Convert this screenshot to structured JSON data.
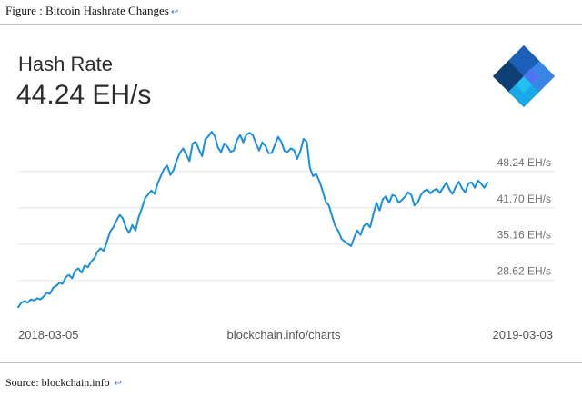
{
  "caption": {
    "text": "Figure : Bitcoin Hashrate Changes",
    "return_mark": "↩"
  },
  "source": {
    "text": "Source: blockchain.info",
    "return_mark": "↩"
  },
  "chart_data": {
    "type": "line",
    "title": "Hash Rate",
    "current_value": "44.24 EH/s",
    "x_start": "2018-03-05",
    "x_center_label": "blockchain.info/charts",
    "x_end": "2019-03-03",
    "y_ticks": [
      {
        "value": 48.24,
        "label": "48.24 EH/s"
      },
      {
        "value": 41.7,
        "label": "41.70 EH/s"
      },
      {
        "value": 35.16,
        "label": "35.16 EH/s"
      },
      {
        "value": 28.62,
        "label": "28.62 EH/s"
      }
    ],
    "ylim": [
      23.5,
      59.5
    ],
    "grid": true,
    "line_color": "#1a8fe0",
    "series": [
      {
        "values": [
          23.8,
          24.6,
          24.9,
          24.6,
          25.2,
          25.0,
          25.4,
          25.2,
          25.7,
          26.4,
          26.2,
          27.3,
          27.6,
          28.2,
          28.0,
          29.2,
          29.6,
          29.0,
          30.4,
          30.8,
          30.0,
          31.3,
          31.0,
          32.0,
          32.6,
          33.8,
          34.4,
          33.9,
          35.6,
          37.4,
          38.2,
          39.4,
          40.4,
          39.8,
          38.1,
          37.2,
          38.6,
          37.6,
          40.0,
          41.6,
          43.4,
          44.1,
          44.8,
          44.2,
          46.1,
          47.4,
          48.7,
          49.3,
          47.6,
          48.5,
          50.2,
          51.6,
          52.4,
          51.3,
          50.1,
          53.3,
          53.6,
          52.2,
          51.0,
          54.0,
          54.6,
          55.4,
          54.6,
          52.6,
          51.7,
          53.3,
          52.7,
          51.8,
          52.0,
          53.9,
          54.8,
          53.5,
          54.9,
          55.2,
          54.8,
          53.3,
          52.0,
          53.5,
          52.8,
          51.5,
          51.6,
          53.1,
          54.5,
          53.6,
          51.9,
          51.8,
          52.4,
          52.1,
          50.5,
          51.9,
          54.1,
          53.6,
          48.9,
          47.4,
          47.8,
          46.5,
          44.8,
          42.8,
          42.1,
          40.2,
          38.4,
          37.5,
          36.1,
          35.6,
          35.2,
          34.8,
          36.4,
          37.6,
          36.8,
          38.4,
          38.9,
          38.2,
          40.5,
          42.6,
          41.2,
          43.2,
          43.8,
          42.6,
          44.0,
          43.8,
          42.6,
          43.1,
          43.7,
          44.5,
          44.0,
          42.1,
          42.6,
          44.0,
          44.7,
          45.0,
          44.3,
          44.8,
          45.1,
          44.4,
          45.3,
          46.2,
          45.0,
          44.2,
          45.5,
          46.4,
          45.2,
          44.5,
          46.1,
          46.3,
          45.3,
          46.6,
          46.1,
          45.3,
          46.3
        ]
      }
    ]
  }
}
